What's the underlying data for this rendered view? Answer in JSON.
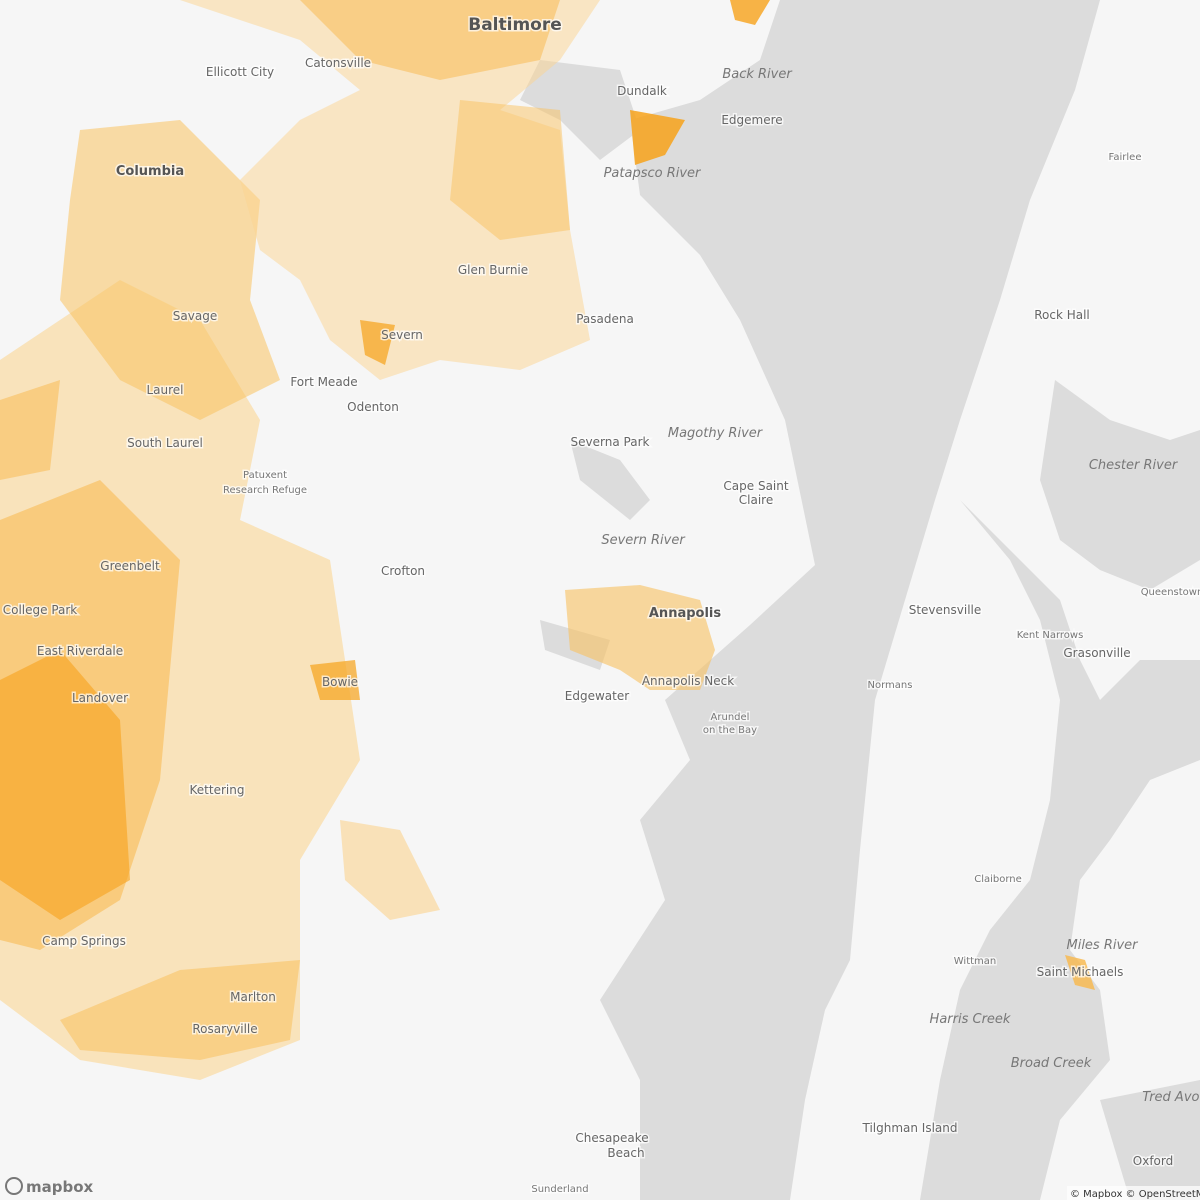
{
  "map": {
    "places": [
      "Baltimore",
      "Ellicott City",
      "Catonsville",
      "Dundalk",
      "Edgemere",
      "Fairlee",
      "Columbia",
      "Glen Burnie",
      "Savage",
      "Severn",
      "Pasadena",
      "Rock Hall",
      "Fort Meade",
      "Odenton",
      "Laurel",
      "South Laurel",
      "Severna Park",
      "Greenbelt",
      "Crofton",
      "Stevensville",
      "Queenstown",
      "Annapolis",
      "Kent Narrows",
      "Grasonville",
      "College Park",
      "East Riverdale",
      "Bowie",
      "Annapolis Neck",
      "Edgewater",
      "Normans",
      "Landover",
      "Kettering",
      "Claiborne",
      "Camp Springs",
      "Wittman",
      "Saint Michaels",
      "Marlton",
      "Rosaryville",
      "Tilghman Island",
      "Oxford",
      "Sunderland"
    ],
    "multiline_places": [
      [
        "Patuxent",
        "Research Refuge"
      ],
      [
        "Cape Saint",
        "Claire"
      ],
      [
        "Arundel",
        "on the Bay"
      ],
      [
        "Chesapeake",
        "Beach"
      ]
    ],
    "water_labels": [
      "Back River",
      "Patapsco River",
      "Magothy River",
      "Chester River",
      "Severn River",
      "Miles River",
      "Harris Creek",
      "Broad Creek",
      "Tred Avon"
    ],
    "logo": "mapbox",
    "attribution": "© Mapbox © OpenStreetMap"
  }
}
